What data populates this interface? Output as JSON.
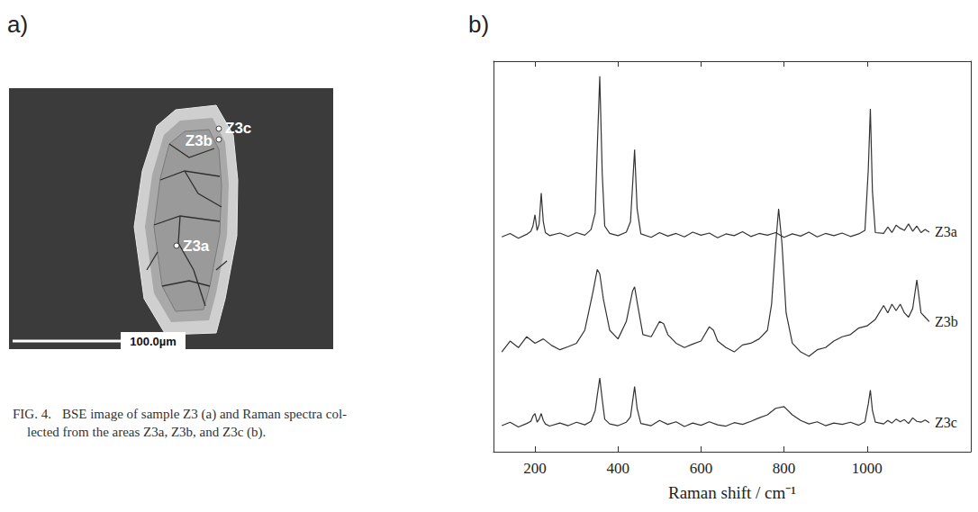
{
  "image_panel": {
    "label": "a)",
    "spots": [
      "Z3a",
      "Z3b",
      "Z3c"
    ],
    "scale_bar": "100.0µm"
  },
  "chart_panel_label": "b)",
  "chart_data": {
    "type": "line",
    "xlabel": "Raman shift / cm⁻¹",
    "xlim": [
      100,
      1250
    ],
    "xticks": [
      200,
      400,
      600,
      800,
      1000
    ],
    "ylim": [
      10,
      100
    ],
    "grid": false,
    "tick_labels": "x",
    "line_style": "solid",
    "series": [
      {
        "name": "Z3a",
        "color": "#333333",
        "x": [
          120,
          140,
          160,
          180,
          190,
          195,
          200,
          205,
          210,
          215,
          220,
          225,
          235,
          260,
          280,
          300,
          320,
          335,
          345,
          350,
          356,
          362,
          368,
          380,
          400,
          420,
          430,
          440,
          446,
          455,
          480,
          500,
          520,
          540,
          560,
          580,
          600,
          620,
          640,
          660,
          680,
          700,
          720,
          740,
          760,
          780,
          800,
          820,
          840,
          860,
          880,
          900,
          920,
          940,
          960,
          980,
          995,
          1003,
          1008,
          1013,
          1020,
          1040,
          1050,
          1060,
          1070,
          1080,
          1090,
          1100,
          1110,
          1120,
          1130,
          1140,
          1150
        ],
        "values": [
          59.5,
          60.3,
          59.2,
          60.1,
          60.8,
          62,
          64.6,
          61,
          62.5,
          69.6,
          63,
          60.5,
          59.8,
          60.4,
          59.6,
          60.5,
          59.9,
          61.2,
          65,
          80,
          96.5,
          74,
          62,
          60.3,
          59.8,
          60.6,
          63,
          79.6,
          66,
          60.2,
          59.4,
          60.5,
          59.7,
          60.3,
          59.5,
          60.6,
          59.9,
          60.4,
          59.3,
          60.2,
          59.8,
          60.7,
          59.6,
          60.3,
          59.9,
          60.5,
          59.4,
          60.2,
          59.7,
          60.6,
          59.5,
          60.3,
          59.8,
          60.4,
          59.6,
          60.2,
          61,
          75,
          89,
          70,
          60.5,
          60.3,
          61.8,
          60.5,
          62.2,
          61.5,
          61,
          62.5,
          60.8,
          62,
          60.5,
          61.2,
          60.6
        ]
      },
      {
        "name": "Z3b",
        "color": "#333333",
        "x": [
          120,
          140,
          160,
          180,
          200,
          220,
          240,
          260,
          280,
          300,
          320,
          340,
          350,
          356,
          365,
          380,
          400,
          420,
          435,
          440,
          447,
          460,
          480,
          500,
          510,
          520,
          540,
          560,
          580,
          600,
          620,
          630,
          640,
          660,
          680,
          700,
          720,
          740,
          760,
          770,
          780,
          787,
          795,
          805,
          820,
          840,
          860,
          880,
          900,
          920,
          940,
          960,
          980,
          1000,
          1020,
          1040,
          1050,
          1060,
          1070,
          1080,
          1090,
          1100,
          1110,
          1120,
          1130,
          1140,
          1150
        ],
        "values": [
          33,
          35.5,
          34,
          36.5,
          35,
          36,
          34.5,
          33.5,
          34.2,
          35,
          38,
          47,
          52,
          51,
          45,
          38,
          36,
          40,
          47,
          48,
          44,
          37,
          36.5,
          40,
          39.5,
          37,
          35,
          34,
          34.8,
          35.5,
          38.8,
          38,
          35.5,
          34,
          33,
          34.6,
          35,
          36,
          38,
          44,
          58,
          66,
          58,
          42,
          35,
          33,
          32,
          33.5,
          34,
          35.5,
          36.5,
          37,
          38.5,
          39,
          40.5,
          43.7,
          42,
          44,
          42.5,
          44,
          42,
          41,
          43,
          49.6,
          42,
          41,
          40
        ]
      },
      {
        "name": "Z3c",
        "color": "#333333",
        "x": [
          120,
          140,
          160,
          180,
          190,
          195,
          200,
          205,
          210,
          215,
          220,
          225,
          235,
          260,
          280,
          300,
          320,
          335,
          345,
          350,
          356,
          362,
          368,
          380,
          400,
          420,
          430,
          440,
          446,
          455,
          480,
          500,
          520,
          540,
          560,
          580,
          600,
          620,
          640,
          660,
          680,
          700,
          720,
          740,
          760,
          780,
          800,
          820,
          840,
          860,
          880,
          900,
          920,
          940,
          960,
          980,
          995,
          1003,
          1008,
          1013,
          1020,
          1040,
          1050,
          1060,
          1070,
          1080,
          1090,
          1100,
          1110,
          1120,
          1130,
          1140,
          1150
        ],
        "values": [
          16,
          16.8,
          15.7,
          16.5,
          17,
          18.2,
          18.8,
          16.8,
          17.5,
          18.8,
          17.2,
          16.4,
          15.9,
          16.6,
          16,
          16.8,
          16.2,
          17,
          19.5,
          23,
          27,
          22,
          17.5,
          16.4,
          16,
          16.8,
          18,
          25,
          20,
          16.5,
          16,
          17.2,
          16.3,
          16.9,
          15.8,
          16.6,
          16.1,
          16.9,
          16.2,
          15.9,
          16.7,
          16.3,
          17,
          17.8,
          18.5,
          20,
          20.4,
          18.5,
          17.2,
          16.4,
          16.9,
          16,
          16.6,
          16.3,
          16.8,
          16.1,
          16.9,
          21,
          24.2,
          19.5,
          16.8,
          16.4,
          17.2,
          16.6,
          17.5,
          16.9,
          17.4,
          16.5,
          17.8,
          17,
          16.8,
          17.3,
          16.7
        ]
      }
    ]
  },
  "caption": {
    "figure": "FIG. 4.",
    "lines": [
      "BSE image of sample Z3 (a) and Raman spectra col-",
      "lected from the areas Z3a, Z3b, and Z3c (b)."
    ]
  }
}
